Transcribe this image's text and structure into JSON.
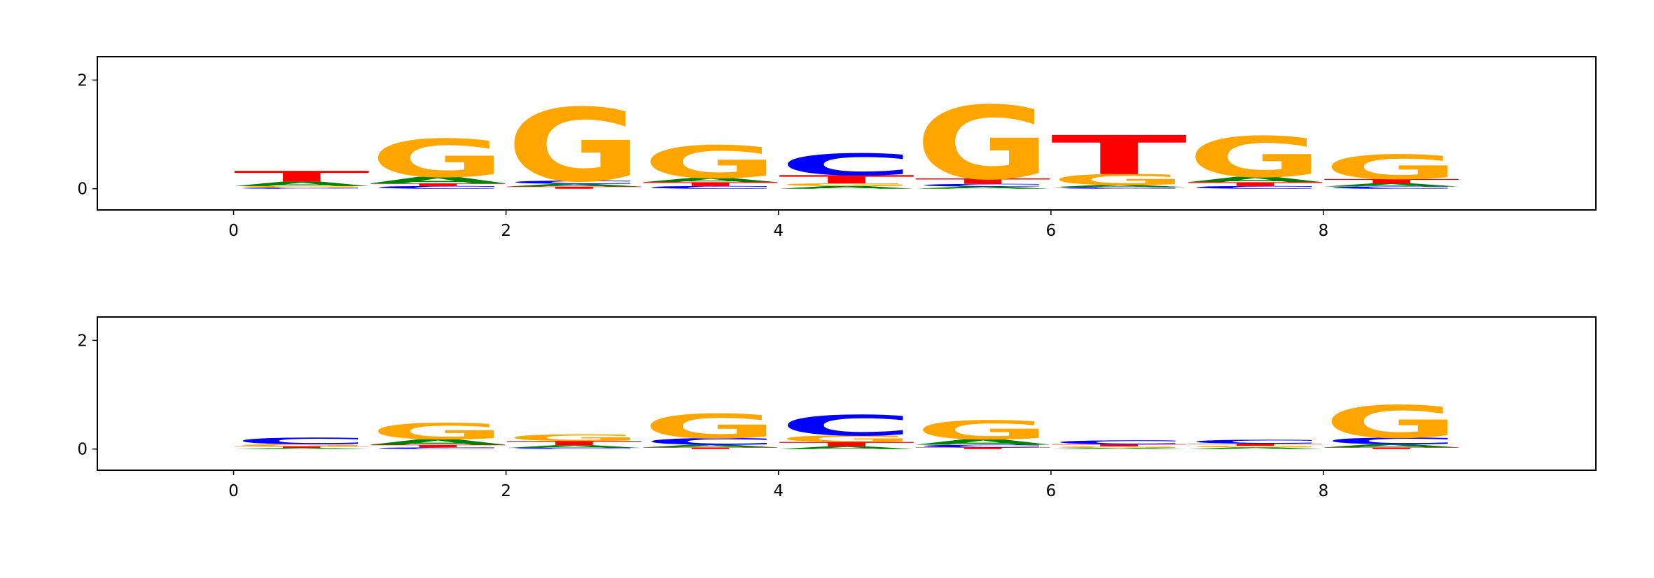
{
  "chart_data": [
    {
      "type": "logo",
      "x": [
        0,
        1,
        2,
        3,
        4,
        5,
        6,
        7,
        8
      ],
      "series": [
        {
          "name": "A",
          "color": "#008000",
          "values": [
            0.08,
            0.12,
            0.05,
            0.08,
            0.05,
            0.04,
            0.04,
            0.1,
            0.06
          ]
        },
        {
          "name": "C",
          "color": "#0000ff",
          "values": [
            0.02,
            0.05,
            0.06,
            0.05,
            0.4,
            0.05,
            0.03,
            0.05,
            0.04
          ]
        },
        {
          "name": "G",
          "color": "#ffa500",
          "values": [
            0.03,
            0.7,
            1.35,
            0.6,
            0.05,
            1.35,
            0.2,
            0.75,
            0.45
          ]
        },
        {
          "name": "T",
          "color": "#ff0000",
          "values": [
            0.2,
            0.05,
            0.04,
            0.07,
            0.15,
            0.1,
            0.72,
            0.07,
            0.08
          ]
        }
      ],
      "xlim": [
        -1,
        10
      ],
      "xticks": [
        0,
        2,
        4,
        6,
        8
      ],
      "ylim": [
        -0.39,
        2.43
      ],
      "yticks": [
        0,
        2
      ]
    },
    {
      "type": "logo",
      "x": [
        0,
        1,
        2,
        3,
        4,
        5,
        6,
        7,
        8
      ],
      "series": [
        {
          "name": "A",
          "color": "#008000",
          "values": [
            0.02,
            0.1,
            0.05,
            0.05,
            0.05,
            0.1,
            0.02,
            0.03,
            0.06
          ]
        },
        {
          "name": "C",
          "color": "#0000ff",
          "values": [
            0.12,
            0.03,
            0.02,
            0.12,
            0.38,
            0.05,
            0.07,
            0.07,
            0.12
          ]
        },
        {
          "name": "G",
          "color": "#ffa500",
          "values": [
            0.04,
            0.3,
            0.12,
            0.45,
            0.12,
            0.35,
            0.03,
            0.03,
            0.6
          ]
        },
        {
          "name": "T",
          "color": "#ff0000",
          "values": [
            0.03,
            0.05,
            0.08,
            0.03,
            0.08,
            0.03,
            0.04,
            0.04,
            0.03
          ]
        }
      ],
      "xlim": [
        -1,
        10
      ],
      "xticks": [
        0,
        2,
        4,
        6,
        8
      ],
      "ylim": [
        -0.39,
        2.43
      ],
      "yticks": [
        0,
        2
      ]
    }
  ]
}
